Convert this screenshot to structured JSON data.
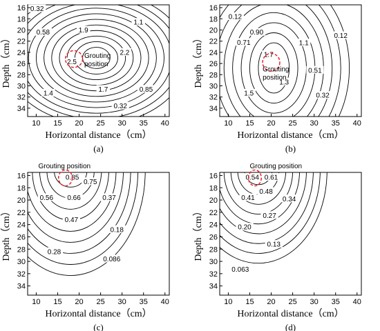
{
  "chart_data": [
    {
      "type": "contour",
      "panel_label": "(a)",
      "xlabel": "Horizontal distance（cm）",
      "ylabel": "Depth（cm）",
      "xlim": [
        8,
        41
      ],
      "ylim": [
        15.5,
        35.5
      ],
      "y_inverted": true,
      "xticks": [
        "10",
        "15",
        "20",
        "25",
        "30",
        "35",
        "40"
      ],
      "yticks": [
        "16",
        "18",
        "20",
        "22",
        "24",
        "26",
        "28",
        "30",
        "32",
        "34"
      ],
      "grouting": {
        "x": 18.8,
        "y": 25.2,
        "rx": 2.0,
        "ry": 1.5,
        "label_lines": [
          "Grouting",
          "position"
        ],
        "lx": 21.2,
        "ly": 25.0
      },
      "center": {
        "x": 24,
        "y": 25
      },
      "rings": [
        {
          "rx": 3.2,
          "ry": 1.9
        },
        {
          "rx": 5.0,
          "ry": 2.9
        },
        {
          "rx": 6.8,
          "ry": 3.9
        },
        {
          "rx": 8.6,
          "ry": 4.9
        },
        {
          "rx": 10.4,
          "ry": 5.9
        },
        {
          "rx": 12.2,
          "ry": 6.9
        },
        {
          "rx": 14.0,
          "ry": 7.9
        },
        {
          "rx": 15.8,
          "ry": 8.9
        },
        {
          "rx": 17.6,
          "ry": 9.9
        },
        {
          "rx": 19.4,
          "ry": 10.9
        },
        {
          "rx": 21.2,
          "ry": 11.9
        }
      ],
      "labels": [
        {
          "text": "0.32",
          "x": 10.2,
          "y": 16.2
        },
        {
          "text": "1.1",
          "x": 33.8,
          "y": 18.6
        },
        {
          "text": "0.58",
          "x": 11.6,
          "y": 20.4
        },
        {
          "text": "1.9",
          "x": 21.0,
          "y": 20.0
        },
        {
          "text": "2.2",
          "x": 30.6,
          "y": 24.0
        },
        {
          "text": "2.5",
          "x": 18.3,
          "y": 25.7
        },
        {
          "text": "1.4",
          "x": 12.8,
          "y": 31.3
        },
        {
          "text": "1.7",
          "x": 25.6,
          "y": 30.6
        },
        {
          "text": "0.85",
          "x": 35.6,
          "y": 30.6
        },
        {
          "text": "0.32",
          "x": 29.6,
          "y": 33.6
        }
      ]
    },
    {
      "type": "contour",
      "panel_label": "(b)",
      "xlabel": "Horizontal distance（cm）",
      "ylabel": "Depth（cm）",
      "xlim": [
        8,
        41
      ],
      "ylim": [
        15.5,
        35.5
      ],
      "y_inverted": true,
      "xticks": [
        "10",
        "15",
        "20",
        "25",
        "30",
        "35",
        "40"
      ],
      "yticks": [
        "16",
        "18",
        "20",
        "22",
        "24",
        "26",
        "28",
        "30",
        "32",
        "34"
      ],
      "grouting": {
        "x": 20.0,
        "y": 25.8,
        "rx": 2.0,
        "ry": 1.6,
        "label_lines": [
          "Grouting",
          "position"
        ],
        "lx": 18.0,
        "ly": 27.4
      },
      "center": {
        "x": 20.6,
        "y": 26.8
      },
      "rings": [
        {
          "rx": 3.6,
          "ry": 4.5
        },
        {
          "rx": 5.6,
          "ry": 6.3
        },
        {
          "rx": 7.6,
          "ry": 8.1
        },
        {
          "rx": 9.6,
          "ry": 9.9
        },
        {
          "rx": 11.6,
          "ry": 11.7
        },
        {
          "rx": 13.6,
          "ry": 13.5
        },
        {
          "rx": 15.6,
          "ry": 15.3
        },
        {
          "rx": 17.6,
          "ry": 17.1
        }
      ],
      "labels": [
        {
          "text": "0.12",
          "x": 11.6,
          "y": 17.6
        },
        {
          "text": "0.90",
          "x": 16.6,
          "y": 20.4
        },
        {
          "text": "0.71",
          "x": 13.6,
          "y": 22.2
        },
        {
          "text": "1.1",
          "x": 27.6,
          "y": 22.3
        },
        {
          "text": "0.12",
          "x": 36.2,
          "y": 21.0
        },
        {
          "text": "1.7",
          "x": 19.4,
          "y": 24.4
        },
        {
          "text": "0.51",
          "x": 30.2,
          "y": 27.2
        },
        {
          "text": "1.3",
          "x": 23.0,
          "y": 29.3
        },
        {
          "text": "1.5",
          "x": 14.8,
          "y": 31.3
        },
        {
          "text": "0.32",
          "x": 32.0,
          "y": 31.7
        }
      ]
    },
    {
      "type": "contour",
      "panel_label": "(c)",
      "xlabel": "Horizontal distance（cm）",
      "ylabel": "Depth（cm）",
      "xlim": [
        8,
        41
      ],
      "ylim": [
        15.5,
        35.5
      ],
      "y_inverted": true,
      "xticks": [
        "10",
        "15",
        "20",
        "25",
        "30",
        "35",
        "40"
      ],
      "yticks": [
        "16",
        "18",
        "20",
        "22",
        "24",
        "26",
        "28",
        "30",
        "32",
        "34"
      ],
      "grouting": {
        "x": 16.8,
        "y": 16.4,
        "rx": 1.6,
        "ry": 1.3,
        "label_lines": [
          "Grouting position"
        ],
        "lx": 10.5,
        "ly": 14.8
      },
      "center": {
        "x": 18.0,
        "y": 15.3
      },
      "rings": [
        {
          "rx": 3.8,
          "ry": 2.6
        },
        {
          "rx": 5.5,
          "ry": 4.4
        },
        {
          "rx": 7.2,
          "ry": 6.2
        },
        {
          "rx": 8.9,
          "ry": 8.0
        },
        {
          "rx": 10.6,
          "ry": 9.8
        },
        {
          "rx": 12.3,
          "ry": 11.6
        },
        {
          "rx": 14.0,
          "ry": 13.4
        },
        {
          "rx": 15.7,
          "ry": 15.2
        },
        {
          "rx": 17.4,
          "ry": 17.0
        }
      ],
      "labels": [
        {
          "text": "0.85",
          "x": 18.4,
          "y": 16.3
        },
        {
          "text": "0.75",
          "x": 22.6,
          "y": 17.0
        },
        {
          "text": "0.56",
          "x": 12.4,
          "y": 19.6
        },
        {
          "text": "0.66",
          "x": 18.8,
          "y": 19.6
        },
        {
          "text": "0.37",
          "x": 27.0,
          "y": 19.6
        },
        {
          "text": "0.47",
          "x": 18.2,
          "y": 23.2
        },
        {
          "text": "0.18",
          "x": 28.8,
          "y": 24.8
        },
        {
          "text": "0.28",
          "x": 14.2,
          "y": 28.4
        },
        {
          "text": "0.086",
          "x": 27.6,
          "y": 29.6
        }
      ]
    },
    {
      "type": "contour",
      "panel_label": "(d)",
      "xlabel": "Horizontal distance（cm）",
      "ylabel": "Depth（cm）",
      "xlim": [
        8,
        41
      ],
      "ylim": [
        15.5,
        35.5
      ],
      "y_inverted": true,
      "xticks": [
        "10",
        "15",
        "20",
        "25",
        "30",
        "35",
        "40"
      ],
      "yticks": [
        "16",
        "18",
        "20",
        "22",
        "24",
        "26",
        "28",
        "30",
        "32",
        "34"
      ],
      "grouting": {
        "x": 16.2,
        "y": 16.4,
        "rx": 1.5,
        "ry": 1.3,
        "label_lines": [
          "Grouting position"
        ],
        "lx": 15.0,
        "ly": 14.8
      },
      "center": {
        "x": 17.0,
        "y": 15.3
      },
      "rings": [
        {
          "rx": 3.2,
          "ry": 2.2
        },
        {
          "rx": 4.8,
          "ry": 3.8
        },
        {
          "rx": 6.4,
          "ry": 5.4
        },
        {
          "rx": 8.0,
          "ry": 7.0
        },
        {
          "rx": 9.6,
          "ry": 8.6
        },
        {
          "rx": 11.2,
          "ry": 10.2
        },
        {
          "rx": 12.8,
          "ry": 11.8
        },
        {
          "rx": 14.4,
          "ry": 13.4
        },
        {
          "rx": 16.0,
          "ry": 15.0
        }
      ],
      "labels": [
        {
          "text": "0.54",
          "x": 15.6,
          "y": 16.3
        },
        {
          "text": "0.61",
          "x": 20.0,
          "y": 16.3
        },
        {
          "text": "0.48",
          "x": 18.8,
          "y": 18.6
        },
        {
          "text": "0.41",
          "x": 14.6,
          "y": 19.6
        },
        {
          "text": "0.34",
          "x": 24.2,
          "y": 19.8
        },
        {
          "text": "0.27",
          "x": 19.6,
          "y": 22.5
        },
        {
          "text": "0.20",
          "x": 13.8,
          "y": 24.4
        },
        {
          "text": "0.13",
          "x": 20.6,
          "y": 27.2
        },
        {
          "text": "0.063",
          "x": 12.8,
          "y": 31.3
        }
      ]
    }
  ]
}
